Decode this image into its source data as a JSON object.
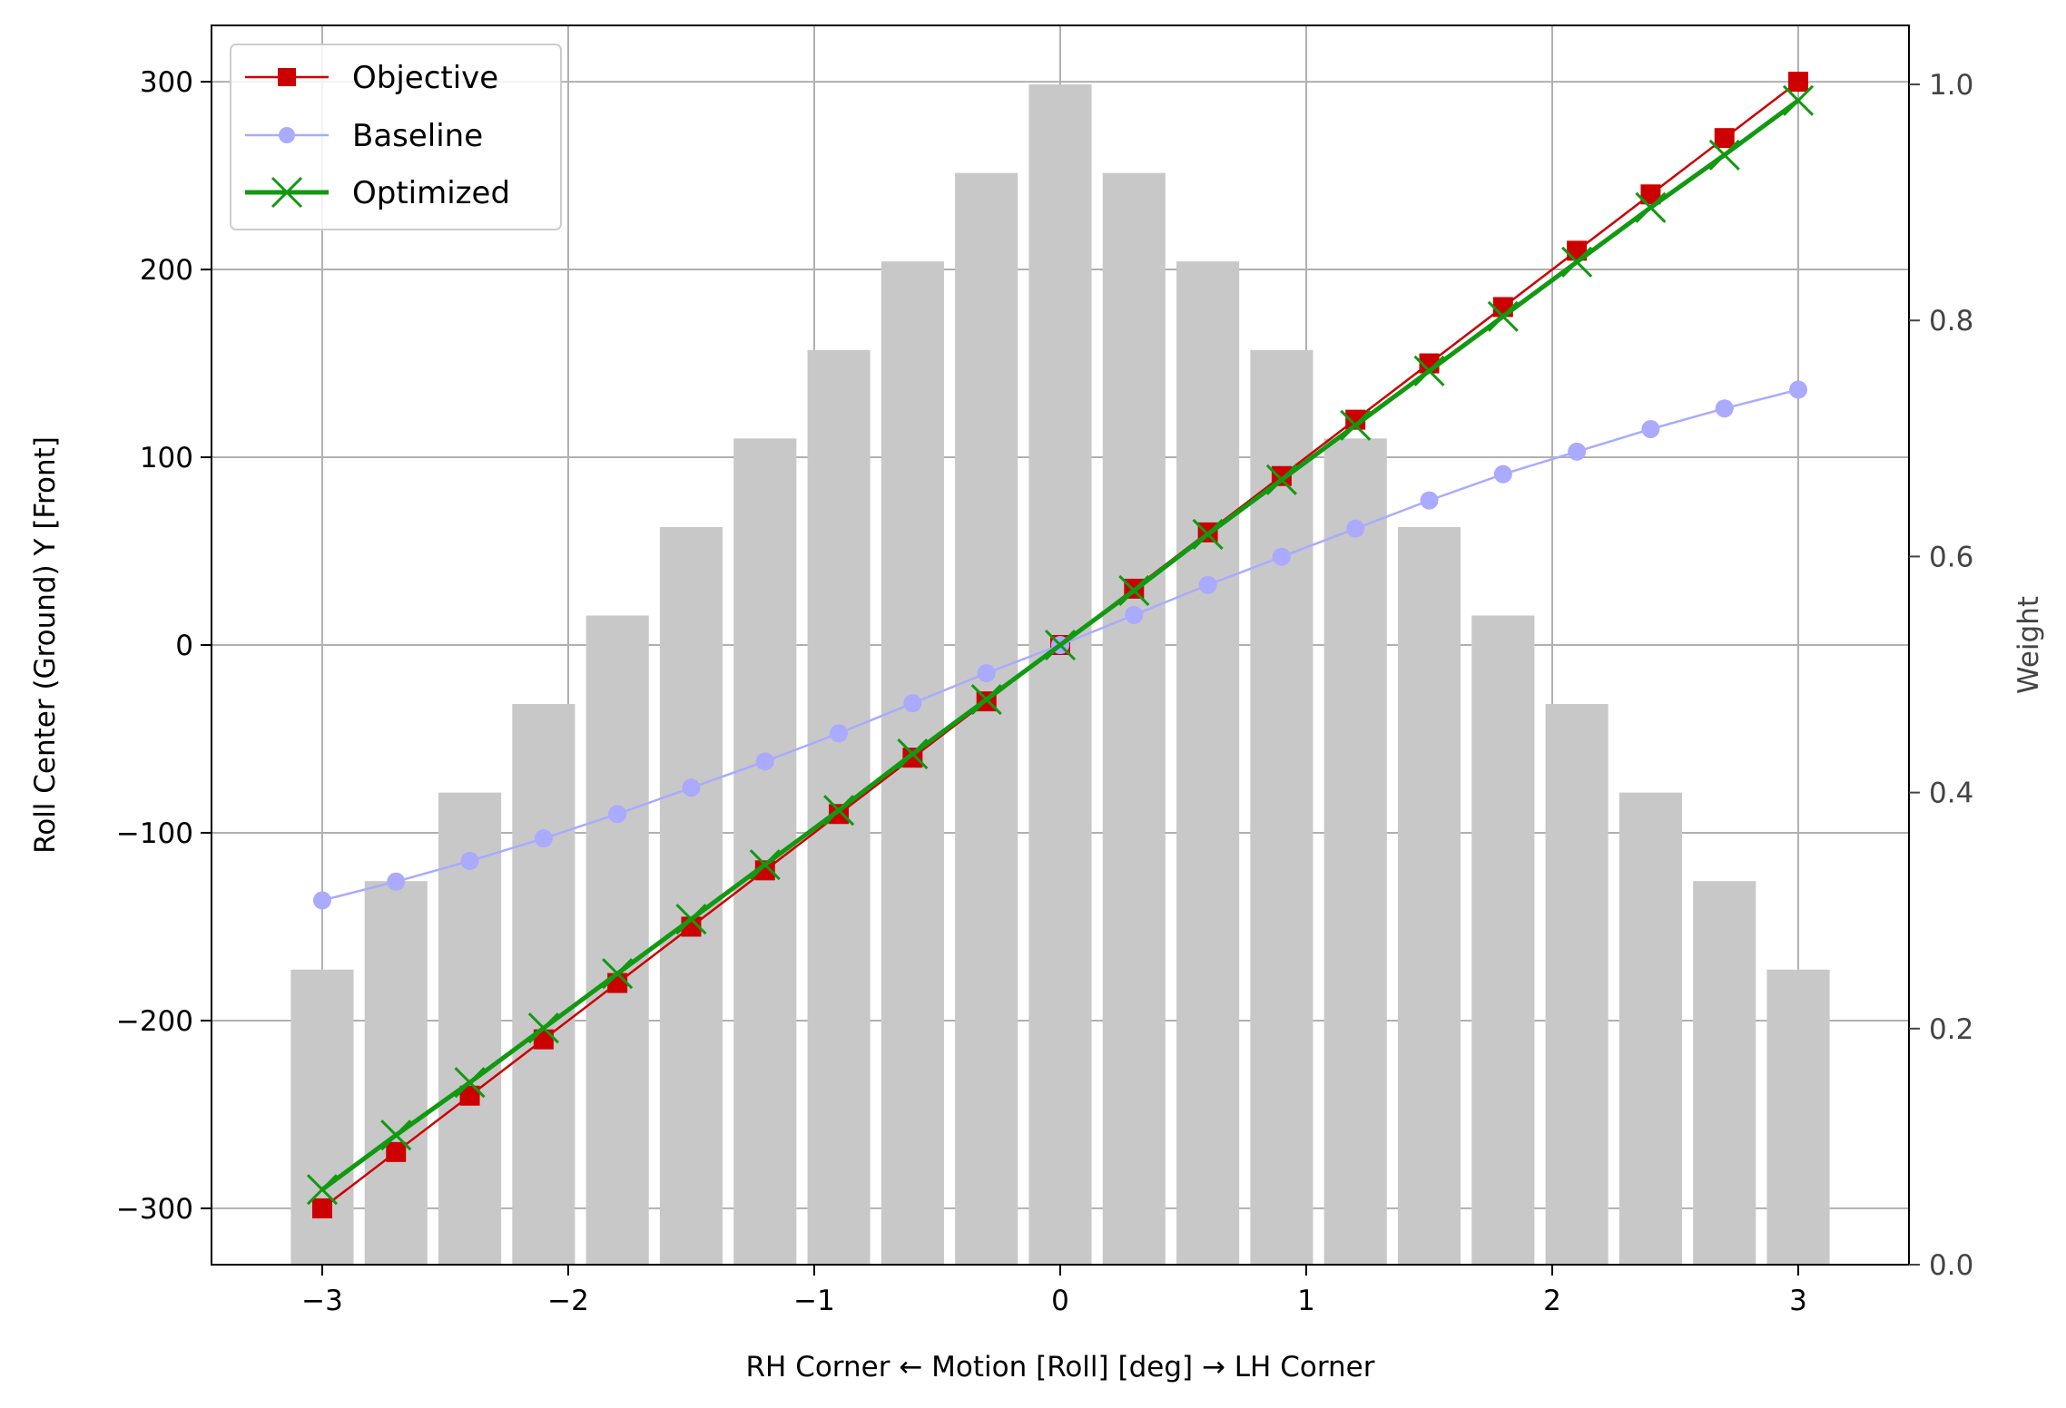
{
  "chart_data": {
    "type": "line",
    "xlabel": "RH Corner ← Motion [Roll] [deg] → LH Corner",
    "ylabel": "Roll Center (Ground) Y [Front]",
    "y2label": "Weight",
    "xlim": [
      -3.45,
      3.45
    ],
    "ylim": [
      -330,
      330
    ],
    "y2lim": [
      0,
      1.05
    ],
    "xticks": [
      -3,
      -2,
      -1,
      0,
      1,
      2,
      3
    ],
    "xtick_labels": [
      "−3",
      "−2",
      "−1",
      "0",
      "1",
      "2",
      "3"
    ],
    "yticks": [
      -300,
      -200,
      -100,
      0,
      100,
      200,
      300
    ],
    "ytick_labels": [
      "−300",
      "−200",
      "−100",
      "0",
      "100",
      "200",
      "300"
    ],
    "y2ticks": [
      0,
      0.2,
      0.4,
      0.6,
      0.8,
      1.0
    ],
    "y2tick_labels": [
      "0.0",
      "0.2",
      "0.4",
      "0.6",
      "0.8",
      "1.0"
    ],
    "grid": true,
    "legend_position": "top-left",
    "x": [
      -3.0,
      -2.7,
      -2.4,
      -2.1,
      -1.8,
      -1.5,
      -1.2,
      -0.9,
      -0.6,
      -0.3,
      0.0,
      0.3,
      0.6,
      0.9,
      1.2,
      1.5,
      1.8,
      2.1,
      2.4,
      2.7,
      3.0
    ],
    "weights": {
      "name": "Weight",
      "color": "#c8c8c8",
      "values": [
        0.25,
        0.325,
        0.4,
        0.475,
        0.55,
        0.625,
        0.7,
        0.775,
        0.85,
        0.925,
        1.0,
        0.925,
        0.85,
        0.775,
        0.7,
        0.625,
        0.55,
        0.475,
        0.4,
        0.325,
        0.25
      ]
    },
    "series": [
      {
        "name": "Objective",
        "color": "#cc0000",
        "marker": "square",
        "values": [
          -300,
          -270,
          -240,
          -210,
          -180,
          -150,
          -120,
          -90,
          -60,
          -30,
          0,
          30,
          60,
          90,
          120,
          150,
          180,
          210,
          240,
          270,
          300
        ]
      },
      {
        "name": "Baseline",
        "color": "#aaaaff",
        "marker": "circle",
        "values": [
          -136,
          -126,
          -115,
          -103,
          -90,
          -76,
          -62,
          -47,
          -31,
          -15,
          0,
          16,
          32,
          47,
          62,
          77,
          91,
          103,
          115,
          126,
          136
        ]
      },
      {
        "name": "Optimized",
        "color": "#119911",
        "marker": "x",
        "values": [
          -290,
          -261,
          -233,
          -204,
          -175,
          -146,
          -117,
          -88,
          -58,
          -29,
          0,
          29,
          59,
          88,
          117,
          146,
          175,
          204,
          233,
          261,
          290
        ]
      }
    ]
  }
}
